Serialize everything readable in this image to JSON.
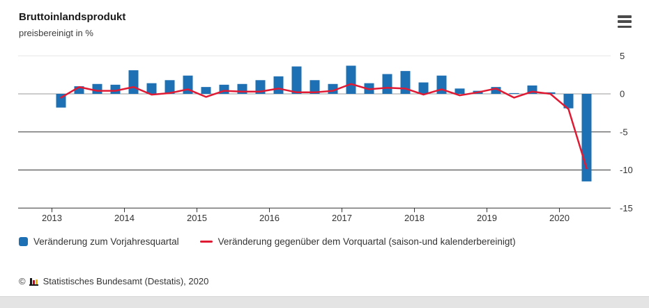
{
  "header": {
    "title": "Bruttoinlandsprodukt",
    "subtitle": "preisbereinigt in %",
    "menu_icon": "hamburger-icon"
  },
  "chart_data": {
    "type": "bar",
    "note": "combined bar + line chart, quarterly German GDP change in percent",
    "categories": [
      "2013-Q1",
      "2013-Q2",
      "2013-Q3",
      "2013-Q4",
      "2014-Q1",
      "2014-Q2",
      "2014-Q3",
      "2014-Q4",
      "2015-Q1",
      "2015-Q2",
      "2015-Q3",
      "2015-Q4",
      "2016-Q1",
      "2016-Q2",
      "2016-Q3",
      "2016-Q4",
      "2017-Q1",
      "2017-Q2",
      "2017-Q3",
      "2017-Q4",
      "2018-Q1",
      "2018-Q2",
      "2018-Q3",
      "2018-Q4",
      "2019-Q1",
      "2019-Q2",
      "2019-Q3",
      "2019-Q4",
      "2020-Q1",
      "2020-Q2"
    ],
    "series": [
      {
        "name": "Veränderung zum Vorjahresquartal",
        "type": "bar",
        "color": "#1d70b4",
        "values": [
          -1.8,
          1.0,
          1.3,
          1.2,
          3.1,
          1.4,
          1.8,
          2.4,
          0.9,
          1.2,
          1.3,
          1.8,
          2.3,
          3.6,
          1.8,
          1.3,
          3.7,
          1.4,
          2.6,
          3.0,
          1.5,
          2.4,
          0.7,
          0.4,
          0.9,
          0.1,
          1.1,
          0.2,
          -1.9,
          -11.5
        ]
      },
      {
        "name": "Veränderung gegenüber dem Vorquartal (saison-und kalenderbereinigt)",
        "type": "line",
        "color": "#e01a33",
        "values": [
          -0.5,
          0.9,
          0.4,
          0.4,
          0.9,
          -0.1,
          0.1,
          0.6,
          -0.4,
          0.4,
          0.3,
          0.3,
          0.7,
          0.2,
          0.2,
          0.4,
          1.3,
          0.6,
          0.8,
          0.7,
          -0.1,
          0.6,
          -0.2,
          0.2,
          0.7,
          -0.5,
          0.3,
          0.0,
          -2.0,
          -9.8
        ]
      }
    ],
    "title": "Bruttoinlandsprodukt",
    "subtitle": "preisbereinigt in %",
    "xlabel": "",
    "ylabel": "",
    "x_tick_labels": [
      "2013",
      "2014",
      "2015",
      "2016",
      "2017",
      "2018",
      "2019",
      "2020"
    ],
    "y_ticks": [
      5,
      0,
      -5,
      -10,
      -15
    ],
    "ylim": [
      -15,
      5
    ],
    "grid": true,
    "legend_position": "bottom",
    "axis_colors": {
      "light_grid": "#e6e6e6",
      "zero_line": "#999999",
      "dark_grid": "#333333",
      "tick_text": "#333333"
    }
  },
  "footer": {
    "copyright": "©",
    "source": "Statistisches Bundesamt (Destatis), 2020"
  }
}
